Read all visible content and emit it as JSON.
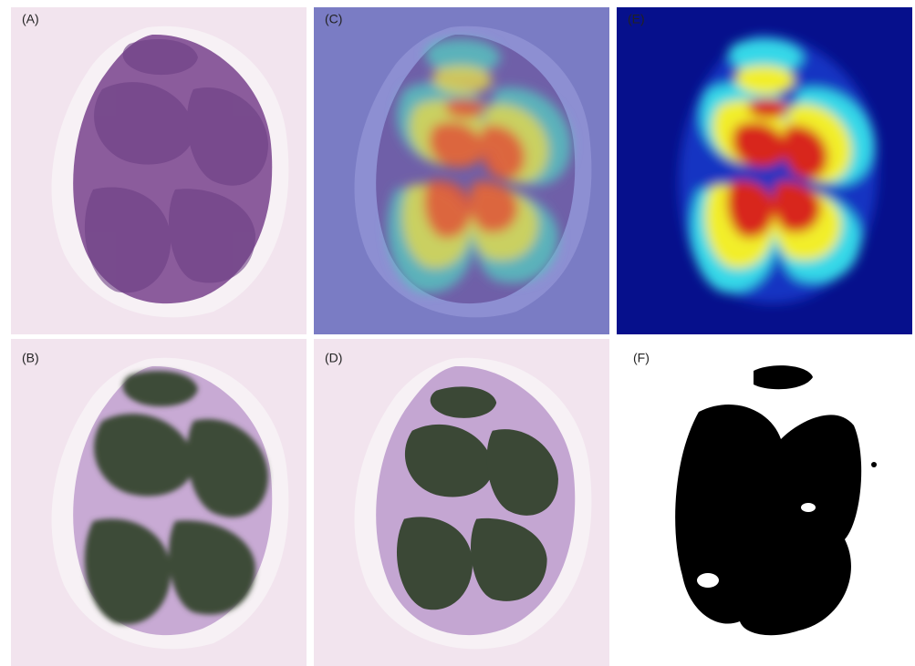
{
  "panels": [
    {
      "label": "(A)"
    },
    {
      "label": "(B)"
    },
    {
      "label": "(C)"
    },
    {
      "label": "(D)"
    },
    {
      "label": "(E)"
    },
    {
      "label": "(F)"
    }
  ]
}
